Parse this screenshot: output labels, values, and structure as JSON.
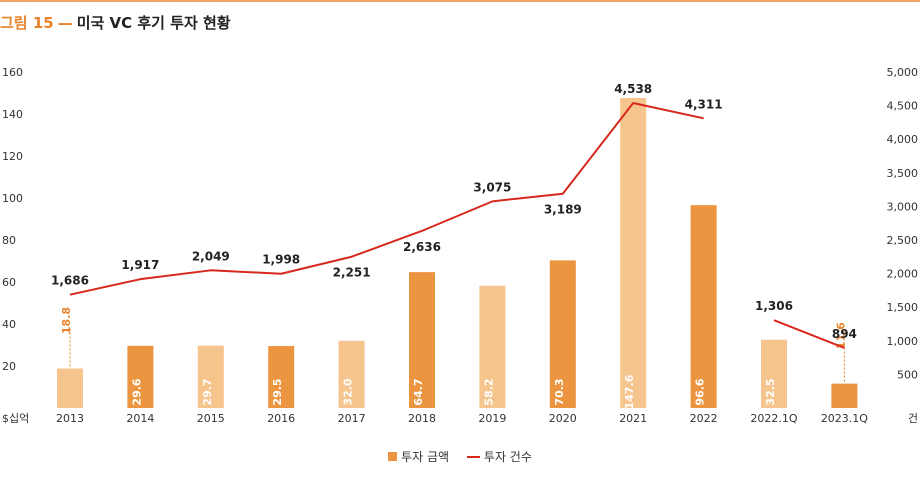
{
  "figure": {
    "label": "그림 15",
    "dash": "—",
    "title": "미국 VC 후기 투자 현황"
  },
  "colors": {
    "accent": "#e8832a",
    "bar_dark": "#ec9541",
    "bar_light": "#f6c48d",
    "line": "#d7281d",
    "text": "#222222"
  },
  "chart_data": {
    "type": "bar",
    "categories": [
      "2013",
      "2014",
      "2015",
      "2016",
      "2017",
      "2018",
      "2019",
      "2020",
      "2021",
      "2022",
      "2022.1Q",
      "2023.1Q"
    ],
    "series": [
      {
        "name": "투자 금액",
        "type": "bar",
        "axis": "left",
        "values": [
          18.8,
          29.6,
          29.7,
          29.5,
          32.0,
          64.7,
          58.2,
          70.3,
          147.6,
          96.6,
          32.5,
          11.6
        ],
        "value_labels": [
          "18.8",
          "29.6",
          "29.7",
          "29.5",
          "32.0",
          "64.7",
          "58.2",
          "70.3",
          "147.6",
          "96.6",
          "32.5",
          "11.6"
        ],
        "shades": [
          "light",
          "dark",
          "light",
          "dark",
          "light",
          "dark",
          "light",
          "dark",
          "light",
          "dark",
          "light",
          "dark"
        ]
      },
      {
        "name": "투자 건수",
        "type": "line",
        "axis": "right",
        "values": [
          1686,
          1917,
          2049,
          1998,
          2251,
          2636,
          3075,
          3189,
          4538,
          4311,
          1306,
          894
        ],
        "value_labels": [
          "1,686",
          "1,917",
          "2,049",
          "1,998",
          "2,251",
          "2,636",
          "3,075",
          "3,189",
          "4,538",
          "4,311",
          "1,306",
          "894"
        ],
        "line_segments": [
          [
            0,
            9
          ],
          [
            10,
            11
          ]
        ]
      }
    ],
    "y_left": {
      "unit_label": "$십억",
      "range": [
        0,
        160
      ],
      "ticks": [
        20,
        40,
        60,
        80,
        100,
        120,
        140,
        160
      ],
      "tick_labels": [
        "20",
        "40",
        "60",
        "80",
        "100",
        "120",
        "140",
        "160"
      ]
    },
    "y_right": {
      "unit_label": "건",
      "range": [
        0,
        5000
      ],
      "ticks": [
        500,
        1000,
        1500,
        2000,
        2500,
        3000,
        3500,
        4000,
        4500,
        5000
      ],
      "tick_labels": [
        "500",
        "1,000",
        "1,500",
        "2,000",
        "2,500",
        "3,000",
        "3,500",
        "4,000",
        "4,500",
        "5,000"
      ]
    },
    "grid": false,
    "legend_position": "bottom-center"
  }
}
